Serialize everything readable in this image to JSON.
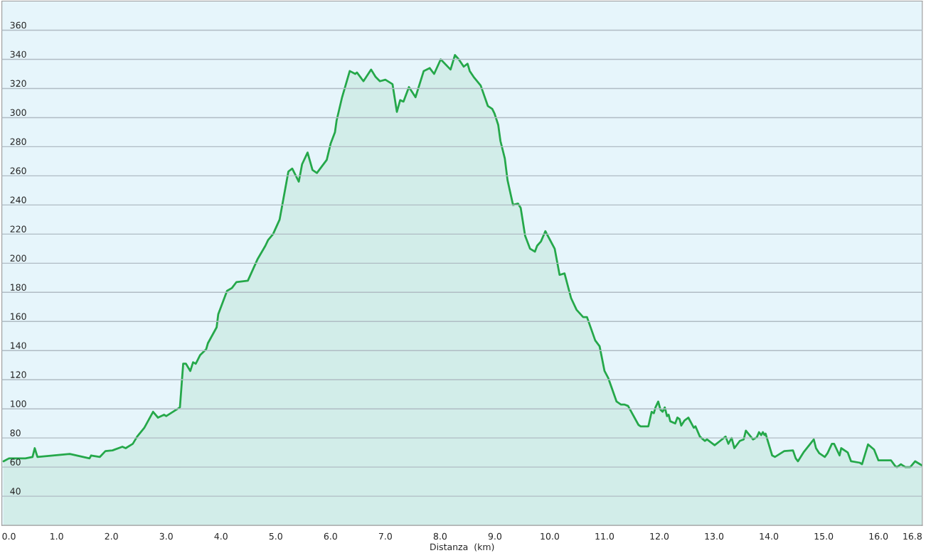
{
  "chart_data": {
    "type": "area",
    "xlabel": "Distanza  (km)",
    "xlim": [
      0,
      16.8
    ],
    "ylim": [
      20,
      380
    ],
    "xticks": [
      {
        "value": 0,
        "label": "0.0"
      },
      {
        "value": 1,
        "label": "1.0"
      },
      {
        "value": 2,
        "label": "2.0"
      },
      {
        "value": 3,
        "label": "3.0"
      },
      {
        "value": 4,
        "label": "4.0"
      },
      {
        "value": 5,
        "label": "5.0"
      },
      {
        "value": 6,
        "label": "6.0"
      },
      {
        "value": 7,
        "label": "7.0"
      },
      {
        "value": 8,
        "label": "8.0"
      },
      {
        "value": 9,
        "label": "9.0"
      },
      {
        "value": 10,
        "label": "10.0"
      },
      {
        "value": 11,
        "label": "11.0"
      },
      {
        "value": 12,
        "label": "12.0"
      },
      {
        "value": 13,
        "label": "13.0"
      },
      {
        "value": 14,
        "label": "14.0"
      },
      {
        "value": 15,
        "label": "15.0"
      },
      {
        "value": 16,
        "label": "16.0"
      },
      16.8
    ],
    "yticks": [
      40,
      60,
      80,
      100,
      120,
      140,
      160,
      180,
      200,
      220,
      240,
      260,
      280,
      300,
      320,
      340,
      360
    ],
    "grid": "y",
    "series": [
      {
        "color": "#25a84a",
        "x": [
          0.03,
          0.13,
          0.43,
          0.56,
          0.6,
          0.65,
          1.24,
          1.6,
          1.63,
          1.79,
          1.89,
          2.02,
          2.2,
          2.26,
          2.39,
          2.47,
          2.6,
          2.76,
          2.85,
          2.96,
          3.0,
          3.25,
          3.31,
          3.36,
          3.44,
          3.49,
          3.54,
          3.62,
          3.73,
          3.76,
          3.92,
          3.95,
          4.11,
          4.2,
          4.28,
          4.49,
          4.67,
          4.81,
          4.86,
          4.95,
          5.07,
          5.23,
          5.3,
          5.42,
          5.48,
          5.58,
          5.67,
          5.75,
          5.93,
          6.0,
          6.08,
          6.11,
          6.21,
          6.35,
          6.45,
          6.48,
          6.6,
          6.74,
          6.82,
          6.9,
          7.0,
          7.13,
          7.21,
          7.27,
          7.33,
          7.43,
          7.55,
          7.7,
          7.81,
          7.89,
          8.01,
          8.19,
          8.27,
          8.34,
          8.43,
          8.5,
          8.54,
          8.61,
          8.74,
          8.87,
          8.95,
          8.99,
          9.06,
          9.1,
          9.18,
          9.23,
          9.33,
          9.42,
          9.47,
          9.55,
          9.64,
          9.73,
          9.77,
          9.84,
          9.92,
          10.09,
          10.18,
          10.27,
          10.39,
          10.49,
          10.61,
          10.68,
          10.83,
          10.91,
          11.0,
          11.07,
          11.22,
          11.3,
          11.36,
          11.43,
          11.62,
          11.66,
          11.8,
          11.86,
          11.9,
          11.93,
          11.98,
          12.02,
          12.06,
          12.1,
          12.14,
          12.17,
          12.2,
          12.29,
          12.33,
          12.37,
          12.4,
          12.46,
          12.53,
          12.63,
          12.66,
          12.74,
          12.83,
          12.87,
          13.01,
          13.11,
          13.21,
          13.26,
          13.32,
          13.37,
          13.47,
          13.54,
          13.58,
          13.71,
          13.78,
          13.82,
          13.86,
          13.89,
          13.92,
          13.94,
          14.06,
          14.11,
          14.28,
          14.44,
          14.49,
          14.53,
          14.63,
          14.82,
          14.86,
          14.92,
          15.02,
          15.07,
          15.15,
          15.19,
          15.29,
          15.32,
          15.44,
          15.5,
          15.66,
          15.7,
          15.81,
          15.89,
          15.92,
          16.0,
          16.23,
          16.31,
          16.34,
          16.41,
          16.49,
          16.58,
          16.67,
          16.8
        ],
        "values": [
          64,
          66,
          66,
          67,
          73,
          67,
          69,
          66,
          68,
          67,
          71,
          71.5,
          74,
          73,
          76,
          81,
          87,
          98,
          94,
          96,
          95,
          101,
          131,
          131,
          126,
          132,
          131,
          137,
          141,
          145,
          156,
          165,
          181,
          183,
          187,
          188,
          203,
          212,
          216,
          220,
          230,
          263,
          265,
          256,
          268,
          276,
          264,
          262,
          271,
          282,
          290,
          298,
          314,
          332,
          330,
          331,
          325,
          333,
          328,
          325,
          326,
          323,
          304,
          312,
          311,
          321,
          314,
          332,
          334,
          330,
          340,
          333,
          343,
          340,
          335,
          337,
          332,
          328,
          322,
          308,
          306,
          303,
          295,
          284,
          272,
          257,
          240,
          241,
          238,
          219,
          210,
          208,
          212,
          215,
          222,
          210,
          192,
          193,
          176,
          168,
          163,
          163,
          147,
          143,
          126,
          121,
          105,
          103,
          103,
          102,
          89,
          88,
          88,
          98,
          97,
          101,
          105,
          99.5,
          98,
          101,
          95,
          96,
          91.5,
          90,
          94,
          93,
          88.5,
          92,
          94,
          87,
          88,
          81,
          78,
          79,
          75,
          78,
          81,
          76,
          80,
          73,
          78,
          79,
          85,
          79,
          80.5,
          84,
          82,
          84,
          82,
          83,
          68,
          67,
          71,
          71.5,
          66,
          64,
          70,
          79,
          73,
          69.5,
          67,
          69.5,
          76,
          76,
          68,
          73,
          70,
          64,
          63,
          62,
          75.6,
          73,
          72,
          64.6,
          64.6,
          60.5,
          60,
          62,
          60,
          60,
          64,
          61
        ]
      }
    ]
  }
}
